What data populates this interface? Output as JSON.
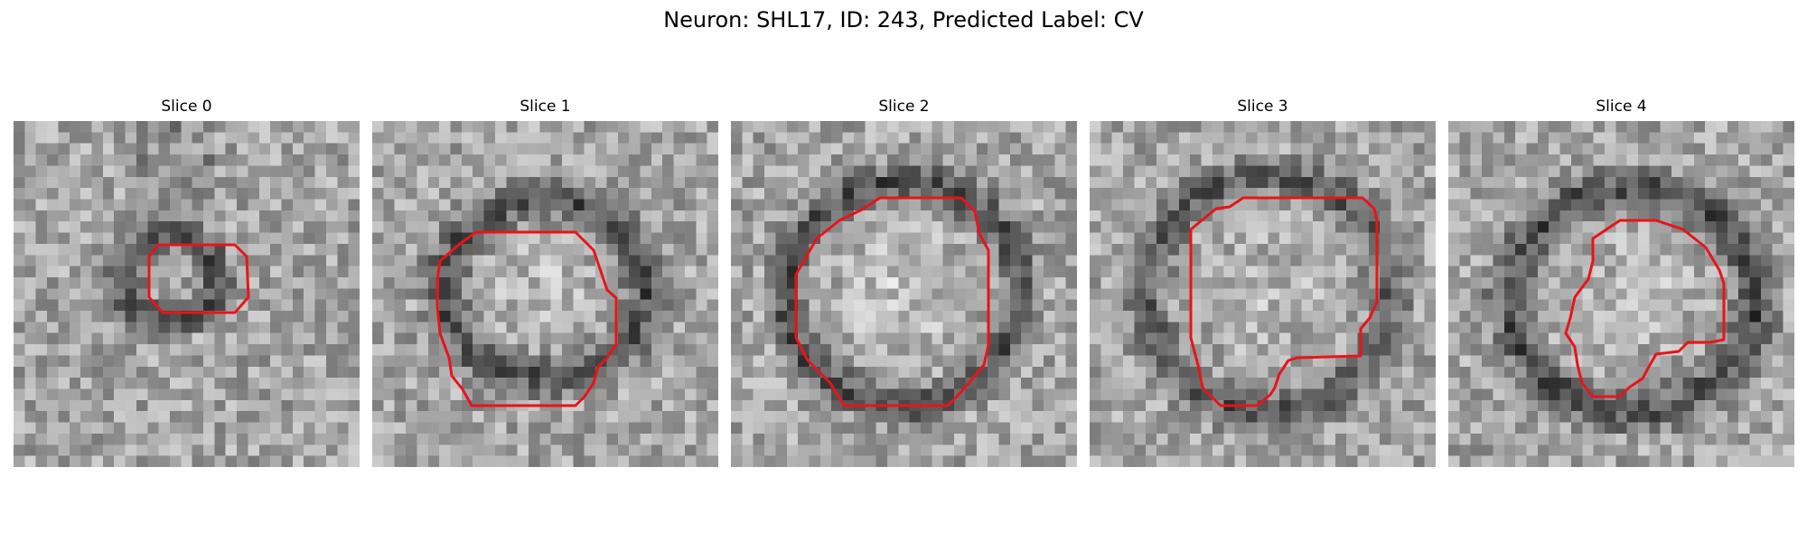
{
  "figure": {
    "title": "Neuron: SHL17, ID: 243, Predicted Label: CV"
  },
  "contour_color": "#e8141a",
  "panels": [
    {
      "label": "Slice 0"
    },
    {
      "label": "Slice 1"
    },
    {
      "label": "Slice 2"
    },
    {
      "label": "Slice 3"
    },
    {
      "label": "Slice 4"
    }
  ]
}
